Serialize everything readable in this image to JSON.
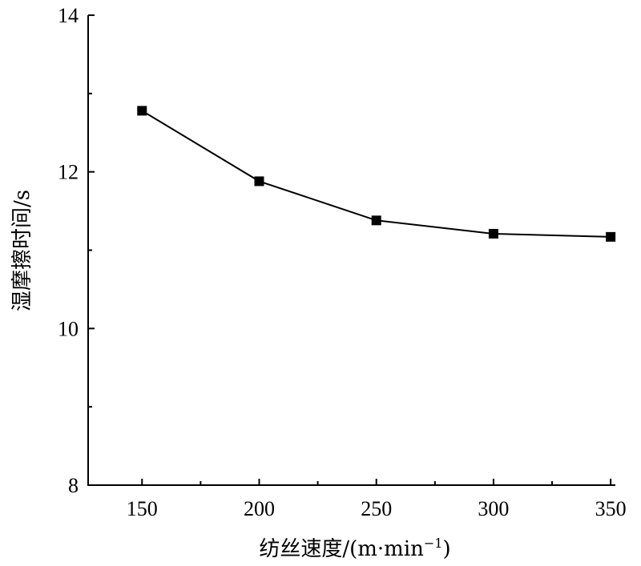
{
  "chart_data": {
    "type": "line",
    "title": "",
    "xlabel": "纺丝速度/(m·min",
    "xlabel_sup": "−1",
    "xlabel_tail": ")",
    "ylabel": "湿摩擦时间/s",
    "xlim": [
      127,
      352
    ],
    "ylim": [
      8,
      14
    ],
    "x_ticks": [
      150,
      200,
      250,
      300,
      350
    ],
    "x_tick_labels": [
      "150",
      "200",
      "250",
      "300",
      "350"
    ],
    "x_minor_ticks": [
      175,
      225,
      275,
      325
    ],
    "y_ticks": [
      8,
      10,
      12,
      14
    ],
    "y_tick_labels": [
      "8",
      "10",
      "12",
      "14"
    ],
    "y_minor_ticks": [
      9,
      11,
      13
    ],
    "legend": "none",
    "grid": false,
    "series": [
      {
        "marker": "square",
        "color": "#000000",
        "x": [
          150,
          200,
          250,
          300,
          350
        ],
        "y": [
          12.78,
          11.88,
          11.38,
          11.21,
          11.17
        ]
      }
    ]
  }
}
